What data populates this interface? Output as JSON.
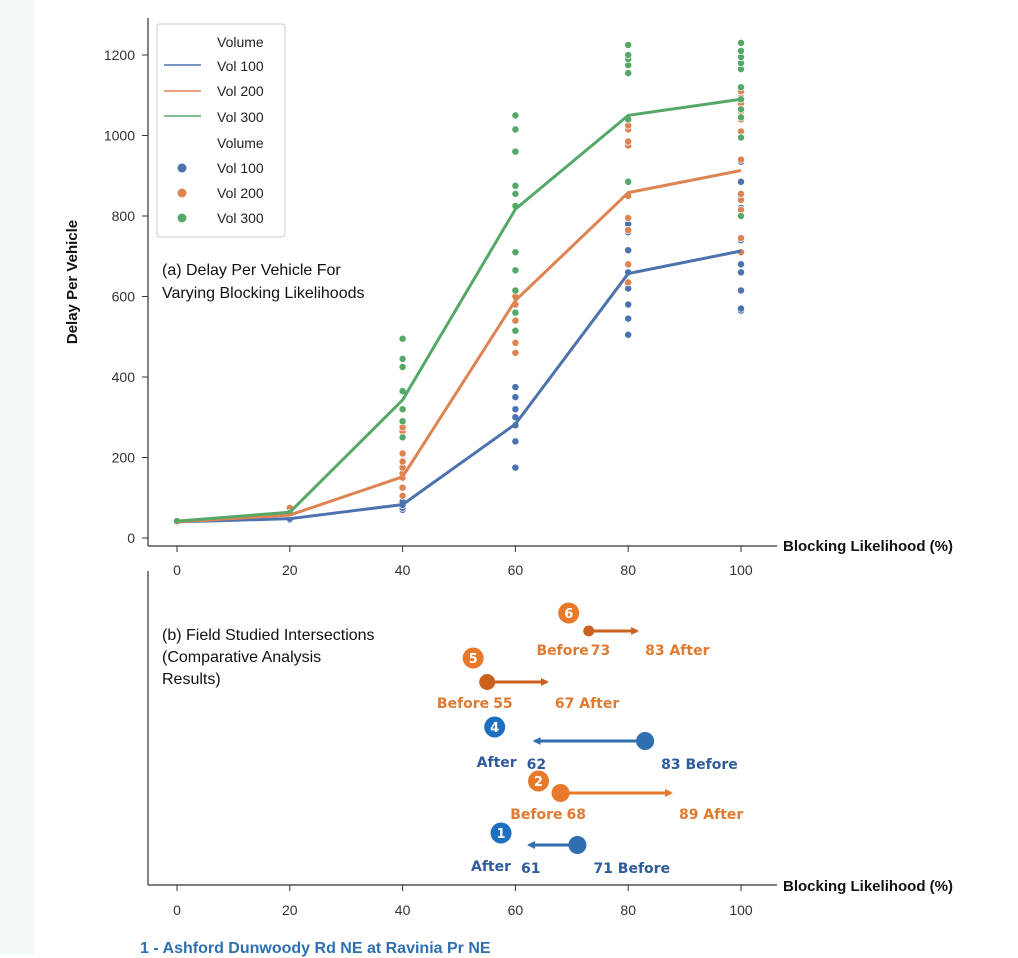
{
  "chart_data": [
    {
      "type": "line",
      "annotation": [
        "(a) Delay Per Vehicle For",
        "Varying Blocking Likelihoods"
      ],
      "xlabel": "Blocking Likelihood (%)",
      "ylabel": "Delay Per Vehicle",
      "xlim": [
        -5,
        105
      ],
      "ylim": [
        -20,
        1275
      ],
      "xticks": [
        0,
        20,
        40,
        60,
        80,
        100
      ],
      "yticks": [
        0,
        200,
        400,
        600,
        800,
        1000,
        1200
      ],
      "x": [
        0,
        20,
        40,
        60,
        80,
        100
      ],
      "legend_placement": "top-left",
      "series": [
        {
          "name": "Vol 100",
          "color": "#4c72b0",
          "values": [
            40,
            48,
            83,
            283,
            657,
            713
          ]
        },
        {
          "name": "Vol 200",
          "color": "#dd8452",
          "values": [
            40,
            57,
            152,
            590,
            858,
            913
          ]
        },
        {
          "name": "Vol 300",
          "color": "#55a868",
          "values": [
            42,
            64,
            343,
            817,
            1050,
            1090
          ]
        }
      ],
      "scatter": [
        {
          "name": "Vol 100",
          "color": "#4c72b0",
          "points": [
            [
              0,
              38
            ],
            [
              0,
              40
            ],
            [
              20,
              45
            ],
            [
              20,
              48
            ],
            [
              40,
              70
            ],
            [
              40,
              75
            ],
            [
              40,
              82
            ],
            [
              40,
              90
            ],
            [
              60,
              175
            ],
            [
              60,
              240
            ],
            [
              60,
              280
            ],
            [
              60,
              300
            ],
            [
              60,
              320
            ],
            [
              60,
              350
            ],
            [
              60,
              375
            ],
            [
              80,
              505
            ],
            [
              80,
              545
            ],
            [
              80,
              580
            ],
            [
              80,
              620
            ],
            [
              80,
              660
            ],
            [
              80,
              715
            ],
            [
              80,
              760
            ],
            [
              80,
              780
            ],
            [
              100,
              565
            ],
            [
              100,
              570
            ],
            [
              100,
              615
            ],
            [
              100,
              660
            ],
            [
              100,
              680
            ],
            [
              100,
              740
            ],
            [
              100,
              820
            ],
            [
              100,
              850
            ],
            [
              100,
              885
            ],
            [
              100,
              935
            ]
          ]
        },
        {
          "name": "Vol 200",
          "color": "#dd8452",
          "points": [
            [
              0,
              40
            ],
            [
              0,
              42
            ],
            [
              20,
              55
            ],
            [
              20,
              60
            ],
            [
              20,
              70
            ],
            [
              20,
              75
            ],
            [
              40,
              105
            ],
            [
              40,
              125
            ],
            [
              40,
              150
            ],
            [
              40,
              160
            ],
            [
              40,
              175
            ],
            [
              40,
              190
            ],
            [
              40,
              210
            ],
            [
              40,
              265
            ],
            [
              40,
              275
            ],
            [
              60,
              460
            ],
            [
              60,
              485
            ],
            [
              60,
              540
            ],
            [
              60,
              560
            ],
            [
              60,
              580
            ],
            [
              60,
              600
            ],
            [
              60,
              665
            ],
            [
              60,
              825
            ],
            [
              80,
              635
            ],
            [
              80,
              680
            ],
            [
              80,
              765
            ],
            [
              80,
              795
            ],
            [
              80,
              850
            ],
            [
              80,
              975
            ],
            [
              80,
              985
            ],
            [
              80,
              1015
            ],
            [
              80,
              1025
            ],
            [
              80,
              1040
            ],
            [
              100,
              710
            ],
            [
              100,
              745
            ],
            [
              100,
              815
            ],
            [
              100,
              840
            ],
            [
              100,
              855
            ],
            [
              100,
              940
            ],
            [
              100,
              1010
            ],
            [
              100,
              1040
            ],
            [
              100,
              1060
            ],
            [
              100,
              1080
            ],
            [
              100,
              1095
            ],
            [
              100,
              1110
            ]
          ]
        },
        {
          "name": "Vol 300",
          "color": "#55a868",
          "points": [
            [
              0,
              42
            ],
            [
              20,
              62
            ],
            [
              40,
              250
            ],
            [
              40,
              290
            ],
            [
              40,
              320
            ],
            [
              40,
              365
            ],
            [
              40,
              425
            ],
            [
              40,
              445
            ],
            [
              40,
              495
            ],
            [
              60,
              515
            ],
            [
              60,
              560
            ],
            [
              60,
              615
            ],
            [
              60,
              665
            ],
            [
              60,
              710
            ],
            [
              60,
              825
            ],
            [
              60,
              855
            ],
            [
              60,
              875
            ],
            [
              60,
              960
            ],
            [
              60,
              1015
            ],
            [
              60,
              1050
            ],
            [
              80,
              885
            ],
            [
              80,
              1040
            ],
            [
              80,
              1155
            ],
            [
              80,
              1175
            ],
            [
              80,
              1190
            ],
            [
              80,
              1200
            ],
            [
              80,
              1225
            ],
            [
              100,
              800
            ],
            [
              100,
              995
            ],
            [
              100,
              1045
            ],
            [
              100,
              1065
            ],
            [
              100,
              1090
            ],
            [
              100,
              1120
            ],
            [
              100,
              1165
            ],
            [
              100,
              1180
            ],
            [
              100,
              1195
            ],
            [
              100,
              1210
            ],
            [
              100,
              1230
            ]
          ]
        }
      ],
      "legend_lines_title": "Volume",
      "legend_points_title": "Volume"
    },
    {
      "type": "scatter",
      "annotation": [
        "(b) Field Studied Intersections",
        "(Comparative Analysis",
        "Results)"
      ],
      "xlabel": "Blocking Likelihood (%)",
      "xlim": [
        -5,
        105
      ],
      "xticks": [
        0,
        20,
        40,
        60,
        80,
        100
      ],
      "intersections": [
        {
          "id": "6",
          "before": 73,
          "after": 83,
          "color": "#c9621f",
          "badge": "#e8792b",
          "label_before": "Before",
          "label_after": "After",
          "before_text": "73",
          "after_text": "83"
        },
        {
          "id": "5",
          "before": 55,
          "after": 67,
          "color": "#c9621f",
          "badge": "#e8792b",
          "label_before": "Before",
          "label_after": "After",
          "before_text": "55",
          "after_text": "67"
        },
        {
          "id": "4",
          "before": 83,
          "after": 62,
          "color": "#2f6fb0",
          "badge": "#1f6fc0",
          "label_before": "Before",
          "label_after": "After",
          "before_text": "83",
          "after_text": "62"
        },
        {
          "id": "2",
          "before": 68,
          "after": 89,
          "color": "#e8792b",
          "badge": "#e8792b",
          "label_before": "Before",
          "label_after": "After",
          "before_text": "68",
          "after_text": "89"
        },
        {
          "id": "1",
          "before": 71,
          "after": 61,
          "color": "#2f6fb0",
          "badge": "#1f6fc0",
          "label_before": "Before",
          "label_after": "After",
          "before_text": "71",
          "after_text": "61"
        }
      ]
    }
  ],
  "footer": {
    "text": "1 - Ashford Dunwoody Rd NE at Ravinia Pr NE"
  }
}
